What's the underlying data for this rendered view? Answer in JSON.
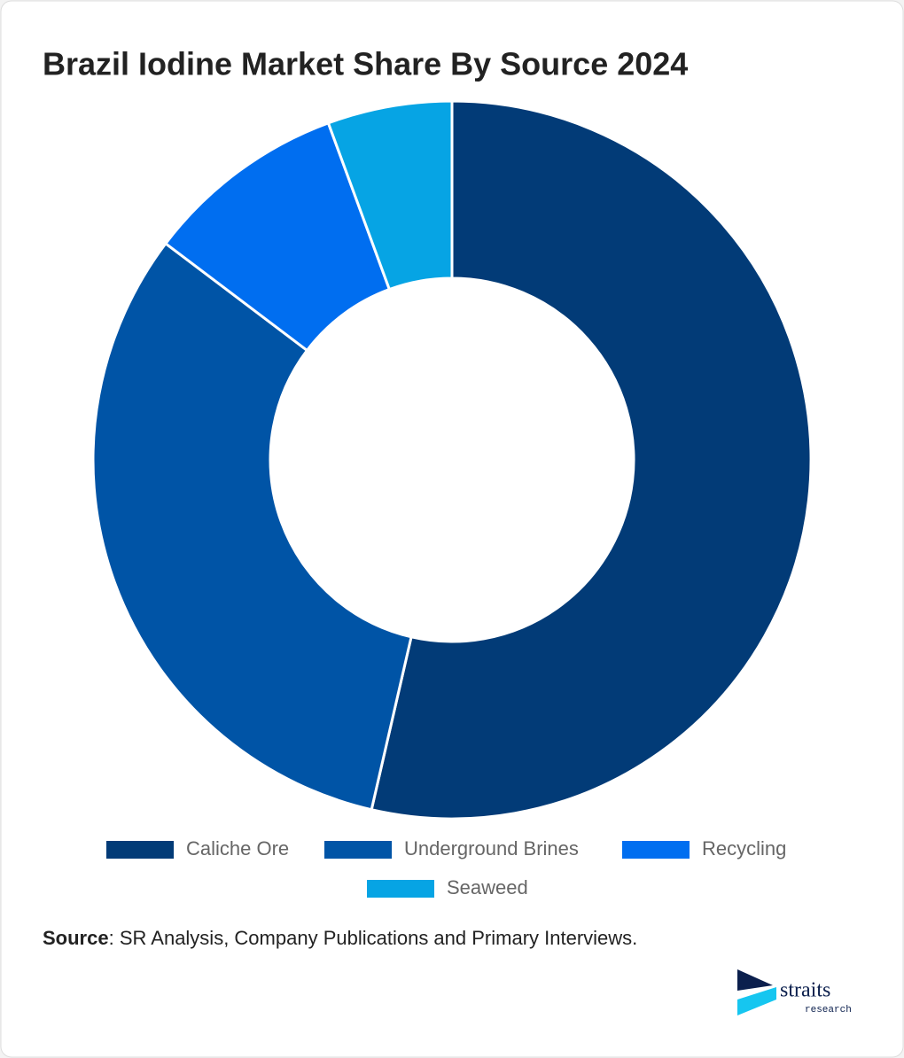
{
  "chart_data": {
    "type": "donut",
    "title": "Brazil Iodine Market Share By Source 2024",
    "categories": [
      "Caliche Ore",
      "Underground Brines",
      "Recycling",
      "Seaweed"
    ],
    "values": [
      53.6,
      31.7,
      9.1,
      5.6
    ],
    "colors": [
      "#023b77",
      "#0054a6",
      "#006ef0",
      "#06a4e4"
    ],
    "source_label": "Source",
    "source_text": ": SR Analysis, Company Publications and Primary Interviews.",
    "logo_name": "straits",
    "logo_tagline": "research"
  }
}
